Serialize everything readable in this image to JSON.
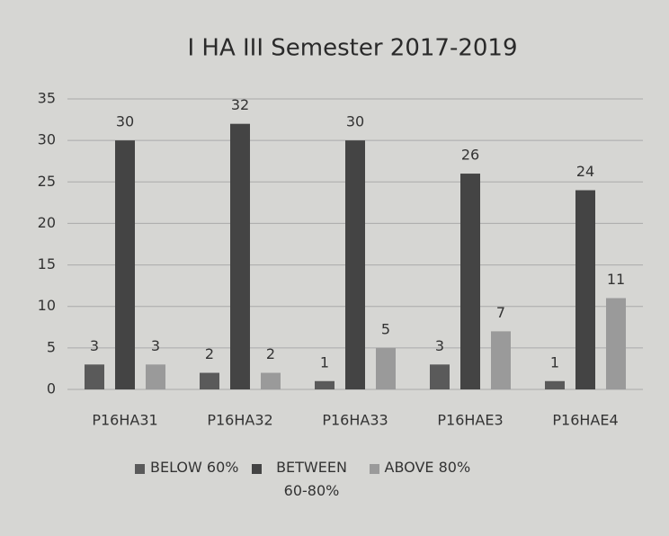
{
  "chart_data": {
    "type": "bar",
    "title": "I HA III Semester 2017-2019",
    "categories": [
      "P16HA31",
      "P16HA32",
      "P16HA33",
      "P16HAE3",
      "P16HAE4"
    ],
    "series": [
      {
        "name": "BELOW 60%",
        "color": "#5a5a5a",
        "values": [
          3,
          2,
          1,
          3,
          1
        ]
      },
      {
        "name": "BETWEEN 60-80%",
        "color": "#444444",
        "values": [
          30,
          32,
          30,
          26,
          24
        ]
      },
      {
        "name": "ABOVE 80%",
        "color": "#9a9a9a",
        "values": [
          3,
          2,
          5,
          7,
          11
        ]
      }
    ],
    "ylim": [
      0,
      35
    ],
    "yticks": [
      0,
      5,
      10,
      15,
      20,
      25,
      30,
      35
    ],
    "grid": true,
    "legend": "bottom"
  }
}
